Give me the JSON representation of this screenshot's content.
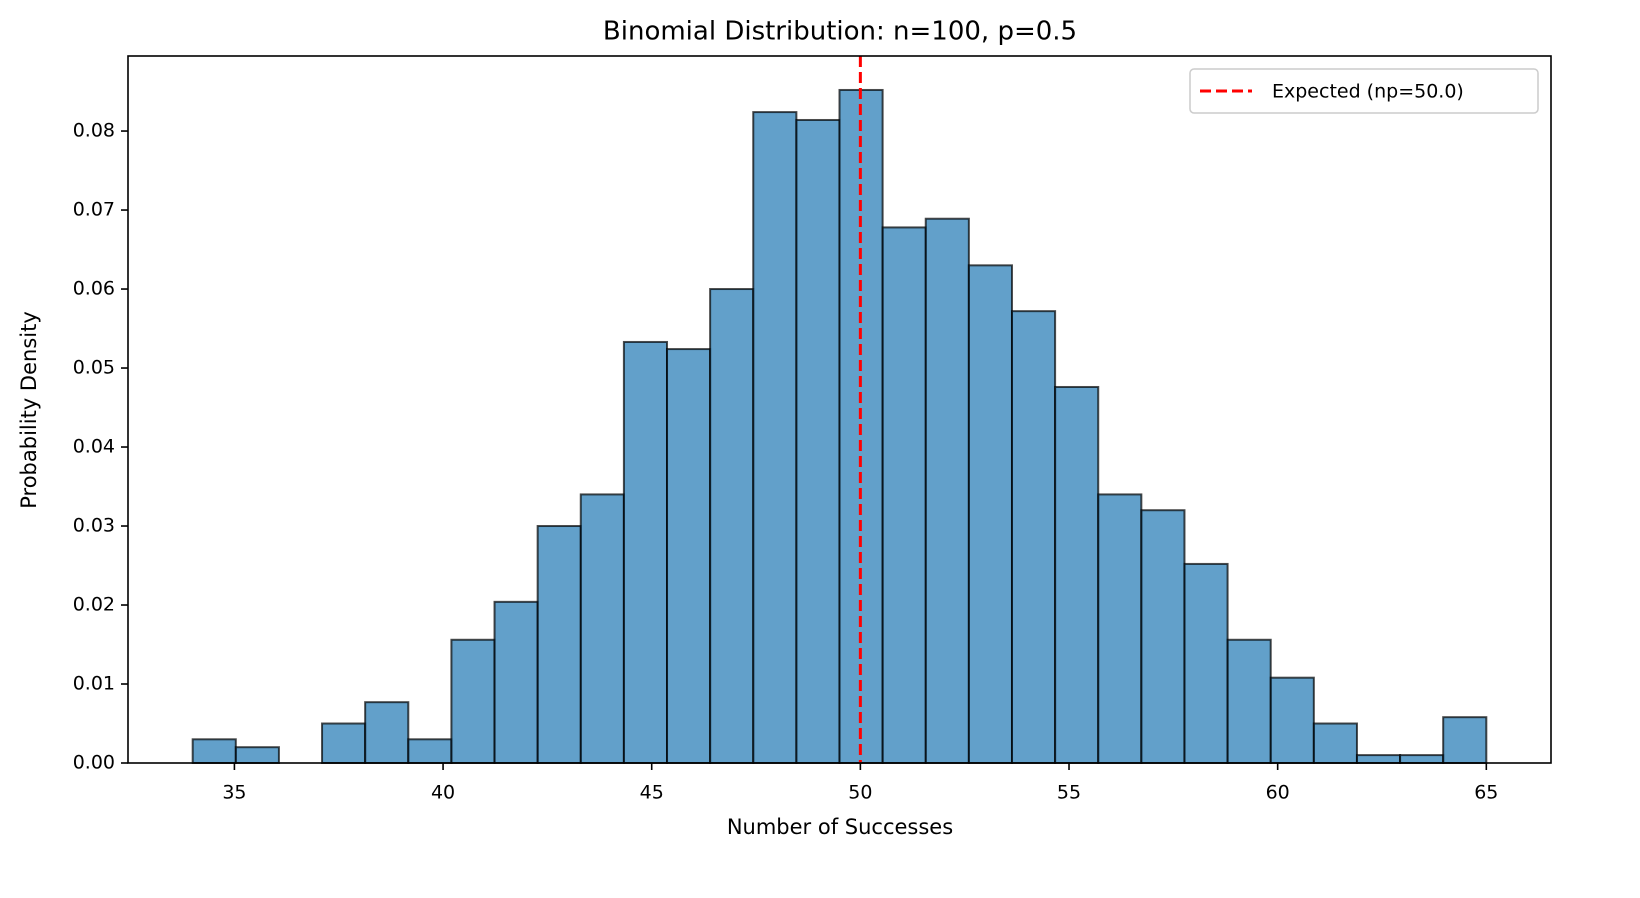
{
  "chart_data": {
    "type": "histogram",
    "title": "Binomial Distribution: n=100, p=0.5",
    "xlabel": "Number of Successes",
    "ylabel": "Probability Density",
    "bins": [
      34,
      35.0333,
      36.0667,
      37.1,
      38.1333,
      39.1667,
      40.2,
      41.2333,
      42.2667,
      43.3,
      44.3333,
      45.3667,
      46.4,
      47.4333,
      48.4667,
      49.5,
      50.5333,
      51.5667,
      52.6,
      53.6333,
      54.6667,
      55.7,
      56.7333,
      57.7667,
      58.8,
      59.8333,
      60.8667,
      61.9,
      62.9333,
      63.9667,
      65
    ],
    "counts": [
      0.003,
      0.002,
      0,
      0.005,
      0.0077,
      0.003,
      0.0156,
      0.0204,
      0.03,
      0.034,
      0.0533,
      0.0524,
      0.06,
      0.0824,
      0.0814,
      0.0852,
      0.0678,
      0.0689,
      0.063,
      0.0572,
      0.0476,
      0.034,
      0.032,
      0.0252,
      0.0156,
      0.0108,
      0.005,
      0.001,
      0.001,
      0.0058
    ],
    "color": "#1f77b4",
    "xlim": [
      32.45,
      66.55
    ],
    "ylim": [
      0,
      0.0895
    ],
    "xticks": [
      35,
      40,
      45,
      50,
      55,
      60,
      65
    ],
    "yticks": [
      {
        "value": 0,
        "label": "0.00"
      },
      0.01,
      0.02,
      0.03,
      0.04,
      0.05,
      0.06,
      0.07,
      0.08
    ],
    "vline": {
      "x": 50,
      "label": "Expected (np=50.0)",
      "color": "red"
    },
    "legend": "upper right"
  }
}
